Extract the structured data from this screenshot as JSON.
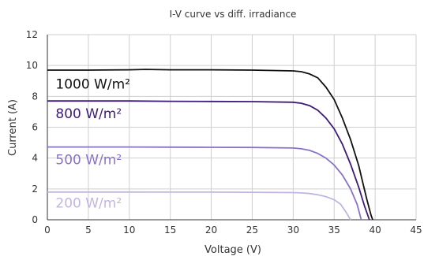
{
  "chart_data": {
    "type": "line",
    "title": "I-V curve vs diff. irradiance",
    "xlabel": "Voltage (V)",
    "ylabel": "Current (A)",
    "xlim": [
      0,
      45
    ],
    "ylim": [
      0,
      12
    ],
    "xticks": [
      0,
      5,
      10,
      15,
      20,
      25,
      30,
      35,
      40,
      45
    ],
    "yticks": [
      0,
      2,
      4,
      6,
      8,
      10,
      12
    ],
    "grid": true,
    "series": [
      {
        "name": "1000 W/m²",
        "color": "#111111",
        "label_pos": [
          1,
          8.5
        ],
        "points": [
          [
            0,
            9.7
          ],
          [
            5,
            9.7
          ],
          [
            10,
            9.72
          ],
          [
            12,
            9.75
          ],
          [
            15,
            9.72
          ],
          [
            20,
            9.72
          ],
          [
            25,
            9.7
          ],
          [
            30,
            9.65
          ],
          [
            31,
            9.6
          ],
          [
            32,
            9.45
          ],
          [
            33,
            9.2
          ],
          [
            34,
            8.6
          ],
          [
            35,
            7.8
          ],
          [
            36,
            6.6
          ],
          [
            37,
            5.2
          ],
          [
            38,
            3.5
          ],
          [
            38.5,
            2.4
          ],
          [
            39,
            1.3
          ],
          [
            39.5,
            0.3
          ],
          [
            39.7,
            0
          ]
        ]
      },
      {
        "name": "800 W/m²",
        "color": "#3d1a78",
        "label_pos": [
          1,
          6.6
        ],
        "points": [
          [
            0,
            7.7
          ],
          [
            5,
            7.7
          ],
          [
            10,
            7.7
          ],
          [
            15,
            7.68
          ],
          [
            20,
            7.67
          ],
          [
            25,
            7.66
          ],
          [
            30,
            7.62
          ],
          [
            31,
            7.55
          ],
          [
            32,
            7.4
          ],
          [
            33,
            7.1
          ],
          [
            34,
            6.6
          ],
          [
            35,
            5.9
          ],
          [
            36,
            4.9
          ],
          [
            37,
            3.6
          ],
          [
            38,
            2.1
          ],
          [
            38.7,
            0.9
          ],
          [
            39.3,
            0
          ]
        ]
      },
      {
        "name": "500 W/m²",
        "color": "#8a73c4",
        "label_pos": [
          1,
          3.6
        ],
        "points": [
          [
            0,
            4.72
          ],
          [
            5,
            4.72
          ],
          [
            10,
            4.72
          ],
          [
            15,
            4.71
          ],
          [
            20,
            4.7
          ],
          [
            25,
            4.69
          ],
          [
            30,
            4.65
          ],
          [
            31,
            4.6
          ],
          [
            32,
            4.5
          ],
          [
            33,
            4.3
          ],
          [
            34,
            4.0
          ],
          [
            35,
            3.55
          ],
          [
            36,
            2.9
          ],
          [
            37,
            2.0
          ],
          [
            37.8,
            1.0
          ],
          [
            38.3,
            0
          ]
        ]
      },
      {
        "name": "200 W/m²",
        "color": "#c3b5e1",
        "label_pos": [
          1,
          0.8
        ],
        "points": [
          [
            0,
            1.8
          ],
          [
            5,
            1.8
          ],
          [
            10,
            1.8
          ],
          [
            15,
            1.79
          ],
          [
            20,
            1.79
          ],
          [
            25,
            1.78
          ],
          [
            30,
            1.76
          ],
          [
            31,
            1.74
          ],
          [
            32,
            1.7
          ],
          [
            33,
            1.62
          ],
          [
            34,
            1.5
          ],
          [
            35,
            1.3
          ],
          [
            35.8,
            1.0
          ],
          [
            36.5,
            0.45
          ],
          [
            37,
            0
          ]
        ]
      }
    ]
  }
}
